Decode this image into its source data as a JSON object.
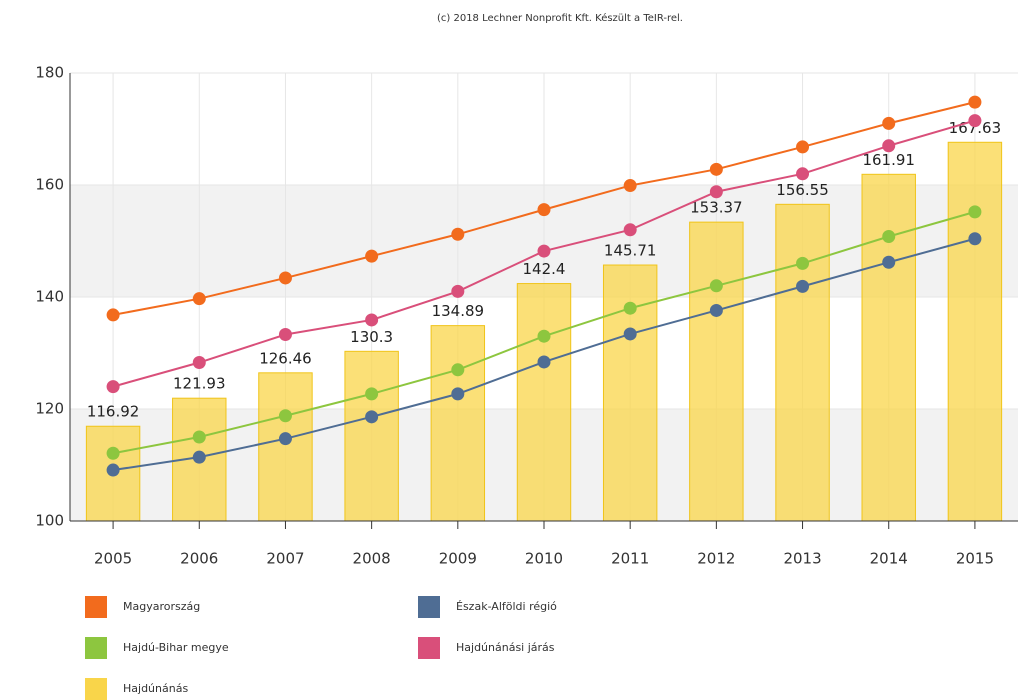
{
  "chart_data": {
    "type": "combo",
    "title": "(c) 2018 Lechner Nonprofit Kft. Készült a TeIR-rel.",
    "categories": [
      "2005",
      "2006",
      "2007",
      "2008",
      "2009",
      "2010",
      "2011",
      "2012",
      "2013",
      "2014",
      "2015"
    ],
    "ylim": [
      100,
      180
    ],
    "yticks": [
      100,
      120,
      140,
      160,
      180
    ],
    "grid": true,
    "alternate_bands": true,
    "legend": "bottom",
    "series": [
      {
        "name": "Magyarország",
        "type": "line",
        "color": "#f26b1d",
        "values": [
          136.8,
          139.7,
          143.4,
          147.3,
          151.2,
          155.6,
          159.9,
          162.8,
          166.8,
          171.0,
          174.8
        ]
      },
      {
        "name": "Észak-Alföldi régió",
        "type": "line",
        "color": "#4f6d94",
        "values": [
          109.1,
          111.4,
          114.7,
          118.6,
          122.7,
          128.4,
          133.4,
          137.6,
          141.9,
          146.2,
          150.4
        ]
      },
      {
        "name": "Hajdú-Bihar megye",
        "type": "line",
        "color": "#8dc63f",
        "values": [
          112.1,
          115.0,
          118.8,
          122.7,
          127.0,
          133.0,
          138.0,
          142.0,
          146.0,
          150.8,
          155.2
        ]
      },
      {
        "name": "Hajdúnánási járás",
        "type": "line",
        "color": "#d94f7a",
        "values": [
          124.0,
          128.3,
          133.3,
          135.9,
          141.0,
          148.2,
          152.0,
          158.8,
          162.0,
          167.0,
          171.5
        ]
      },
      {
        "name": "Hajdúnánás",
        "type": "bar",
        "color": "#f9d54a",
        "values": [
          116.92,
          121.93,
          126.46,
          130.3,
          134.89,
          142.4,
          145.71,
          153.37,
          156.55,
          161.91,
          167.63
        ]
      }
    ]
  }
}
